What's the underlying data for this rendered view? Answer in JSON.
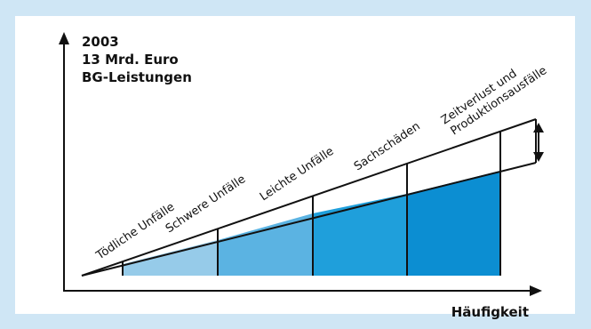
{
  "header": {
    "year": "2003",
    "amount": "13 Mrd. Euro",
    "benefits": "BG-Leistungen"
  },
  "x_axis_label": "Häufigkeit",
  "segments": [
    {
      "label": "Tödliche Unfälle"
    },
    {
      "label": "Schwere Unfälle"
    },
    {
      "label": "Leichte Unfälle"
    },
    {
      "label": "Sachschäden"
    },
    {
      "label": "Zeitverlust und",
      "label_line2": "Produktionsausfälle"
    }
  ],
  "colors": {
    "background": "#cfe6f5",
    "segment_fills": [
      "#ffffff",
      "#96cbe9",
      "#5bb3e2",
      "#1f9fdb",
      "#0c8ed2"
    ],
    "line": "#111111"
  }
}
